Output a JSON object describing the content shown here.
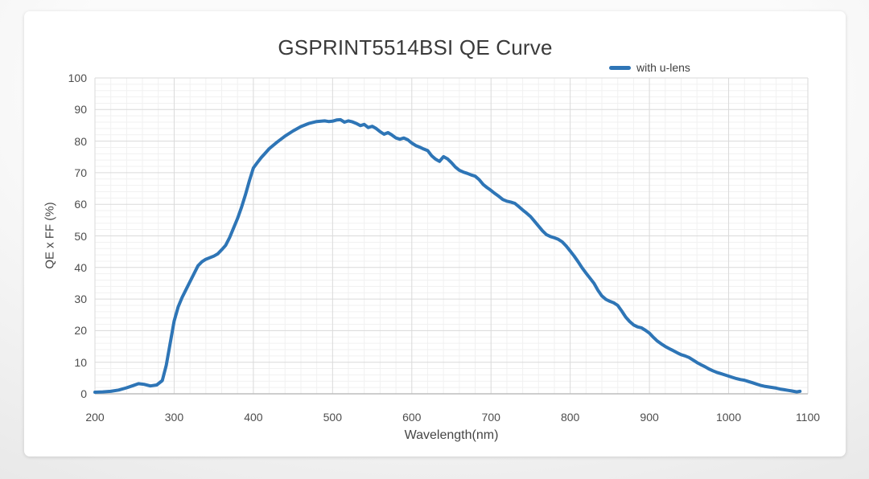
{
  "chart": {
    "title": "GSPRINT5514BSI QE Curve",
    "legend_label": "with u-lens",
    "x_label": "Wavelength(nm)",
    "y_label": "QE x FF (%)"
  },
  "colors": {
    "line": "#2e75b6",
    "grid_major": "#dadada",
    "grid_minor": "#f1f1f1",
    "axis_line": "#bdbdbd",
    "title_text": "#3a3a3a",
    "tick_text": "#4d4d4d"
  },
  "chart_data": {
    "type": "line",
    "title": "GSPRINT5514BSI QE Curve",
    "xlabel": "Wavelength(nm)",
    "ylabel": "QE x FF (%)",
    "xlim": [
      200,
      1100
    ],
    "ylim": [
      0,
      100
    ],
    "x_ticks": [
      200,
      300,
      400,
      500,
      600,
      700,
      800,
      900,
      1000,
      1100
    ],
    "y_ticks": [
      0,
      10,
      20,
      30,
      40,
      50,
      60,
      70,
      80,
      90,
      100
    ],
    "x_minor_step": 20,
    "y_minor_step": 2,
    "grid": "major+minor",
    "legend_position": "top-right",
    "series": [
      {
        "name": "with u-lens",
        "color": "#2e75b6",
        "points": [
          [
            200,
            0.5
          ],
          [
            210,
            0.6
          ],
          [
            220,
            0.8
          ],
          [
            230,
            1.2
          ],
          [
            240,
            1.9
          ],
          [
            248,
            2.6
          ],
          [
            255,
            3.2
          ],
          [
            262,
            3.0
          ],
          [
            270,
            2.5
          ],
          [
            278,
            2.8
          ],
          [
            285,
            4.2
          ],
          [
            290,
            9
          ],
          [
            295,
            16
          ],
          [
            300,
            23
          ],
          [
            305,
            27.5
          ],
          [
            310,
            30.5
          ],
          [
            315,
            33
          ],
          [
            320,
            35.5
          ],
          [
            330,
            40.5
          ],
          [
            335,
            41.8
          ],
          [
            340,
            42.6
          ],
          [
            350,
            43.6
          ],
          [
            355,
            44.3
          ],
          [
            360,
            45.6
          ],
          [
            365,
            47
          ],
          [
            370,
            49.5
          ],
          [
            375,
            52.5
          ],
          [
            380,
            55.5
          ],
          [
            385,
            59
          ],
          [
            390,
            63
          ],
          [
            395,
            67.5
          ],
          [
            400,
            71.5
          ],
          [
            405,
            73.2
          ],
          [
            410,
            74.8
          ],
          [
            415,
            76.2
          ],
          [
            420,
            77.6
          ],
          [
            430,
            79.7
          ],
          [
            440,
            81.6
          ],
          [
            450,
            83.2
          ],
          [
            460,
            84.6
          ],
          [
            470,
            85.6
          ],
          [
            480,
            86.2
          ],
          [
            490,
            86.4
          ],
          [
            495,
            86.2
          ],
          [
            500,
            86.3
          ],
          [
            505,
            86.7
          ],
          [
            510,
            86.8
          ],
          [
            515,
            86.0
          ],
          [
            520,
            86.4
          ],
          [
            525,
            86.1
          ],
          [
            530,
            85.6
          ],
          [
            535,
            84.9
          ],
          [
            540,
            85.3
          ],
          [
            545,
            84.3
          ],
          [
            550,
            84.7
          ],
          [
            555,
            84.0
          ],
          [
            560,
            83.0
          ],
          [
            565,
            82.2
          ],
          [
            570,
            82.7
          ],
          [
            575,
            81.9
          ],
          [
            580,
            81.0
          ],
          [
            585,
            80.6
          ],
          [
            590,
            81.0
          ],
          [
            595,
            80.4
          ],
          [
            600,
            79.4
          ],
          [
            605,
            78.6
          ],
          [
            610,
            78.1
          ],
          [
            615,
            77.5
          ],
          [
            620,
            77.0
          ],
          [
            625,
            75.4
          ],
          [
            630,
            74.3
          ],
          [
            635,
            73.6
          ],
          [
            640,
            75.1
          ],
          [
            645,
            74.4
          ],
          [
            650,
            73.2
          ],
          [
            655,
            71.8
          ],
          [
            660,
            70.8
          ],
          [
            665,
            70.2
          ],
          [
            670,
            69.8
          ],
          [
            675,
            69.3
          ],
          [
            680,
            68.9
          ],
          [
            685,
            67.8
          ],
          [
            690,
            66.3
          ],
          [
            695,
            65.3
          ],
          [
            700,
            64.4
          ],
          [
            705,
            63.4
          ],
          [
            710,
            62.5
          ],
          [
            715,
            61.5
          ],
          [
            720,
            61.0
          ],
          [
            725,
            60.7
          ],
          [
            730,
            60.3
          ],
          [
            735,
            59.3
          ],
          [
            740,
            58.2
          ],
          [
            745,
            57.2
          ],
          [
            750,
            56.1
          ],
          [
            755,
            54.6
          ],
          [
            760,
            53.1
          ],
          [
            765,
            51.6
          ],
          [
            770,
            50.4
          ],
          [
            775,
            49.8
          ],
          [
            780,
            49.4
          ],
          [
            785,
            48.9
          ],
          [
            790,
            48.1
          ],
          [
            795,
            46.8
          ],
          [
            800,
            45.2
          ],
          [
            805,
            43.6
          ],
          [
            810,
            41.8
          ],
          [
            815,
            39.9
          ],
          [
            820,
            38.2
          ],
          [
            825,
            36.6
          ],
          [
            830,
            35.0
          ],
          [
            835,
            32.8
          ],
          [
            840,
            31.0
          ],
          [
            845,
            29.9
          ],
          [
            850,
            29.3
          ],
          [
            855,
            28.8
          ],
          [
            860,
            28.0
          ],
          [
            865,
            26.2
          ],
          [
            870,
            24.3
          ],
          [
            875,
            22.9
          ],
          [
            880,
            21.8
          ],
          [
            885,
            21.2
          ],
          [
            890,
            20.9
          ],
          [
            895,
            20.1
          ],
          [
            900,
            19.2
          ],
          [
            905,
            17.9
          ],
          [
            910,
            16.7
          ],
          [
            915,
            15.8
          ],
          [
            920,
            15.0
          ],
          [
            925,
            14.3
          ],
          [
            930,
            13.7
          ],
          [
            935,
            13.0
          ],
          [
            940,
            12.4
          ],
          [
            945,
            12.0
          ],
          [
            950,
            11.5
          ],
          [
            955,
            10.7
          ],
          [
            960,
            9.9
          ],
          [
            965,
            9.2
          ],
          [
            970,
            8.6
          ],
          [
            975,
            7.9
          ],
          [
            980,
            7.3
          ],
          [
            985,
            6.8
          ],
          [
            990,
            6.4
          ],
          [
            995,
            6.0
          ],
          [
            1000,
            5.6
          ],
          [
            1005,
            5.2
          ],
          [
            1010,
            4.8
          ],
          [
            1015,
            4.5
          ],
          [
            1020,
            4.3
          ],
          [
            1025,
            3.9
          ],
          [
            1030,
            3.5
          ],
          [
            1035,
            3.1
          ],
          [
            1040,
            2.7
          ],
          [
            1045,
            2.4
          ],
          [
            1050,
            2.2
          ],
          [
            1055,
            2.0
          ],
          [
            1060,
            1.8
          ],
          [
            1065,
            1.5
          ],
          [
            1070,
            1.3
          ],
          [
            1075,
            1.1
          ],
          [
            1080,
            0.9
          ],
          [
            1086,
            0.6
          ],
          [
            1090,
            0.8
          ]
        ]
      }
    ]
  }
}
